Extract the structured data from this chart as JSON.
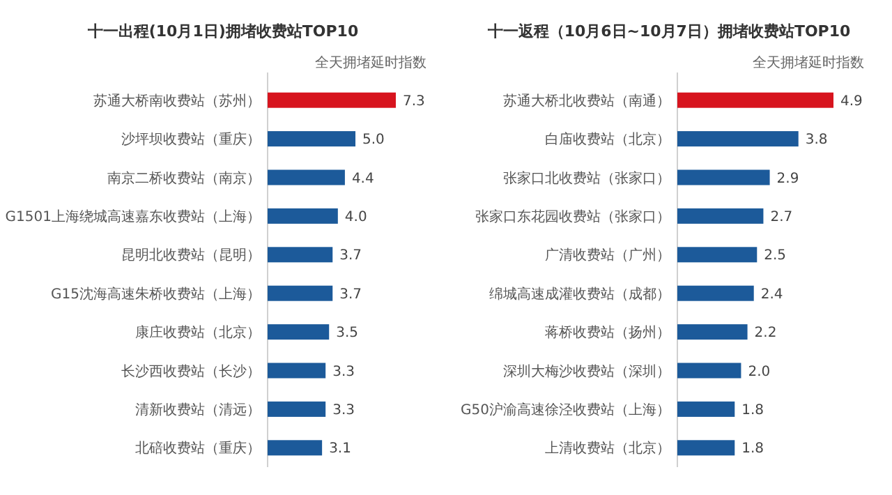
{
  "chart_data": [
    {
      "type": "bar",
      "orientation": "horizontal",
      "title": "十一出程(10月1日)拥堵收费站TOP10",
      "xlabel": "全天拥堵延时指数",
      "categories": [
        "苏通大桥南收费站（苏州）",
        "沙坪坝收费站（重庆）",
        "南京二桥收费站（南京）",
        "G1501上海绕城高速嘉东收费站（上海）",
        "昆明北收费站（昆明）",
        "G15沈海高速朱桥收费站（上海）",
        "康庄收费站（北京）",
        "长沙西收费站（长沙）",
        "清新收费站（清远）",
        "北碚收费站（重庆）"
      ],
      "values": [
        7.3,
        5.0,
        4.4,
        4.0,
        3.7,
        3.7,
        3.5,
        3.3,
        3.3,
        3.1
      ],
      "value_labels": [
        "7.3",
        "5.0",
        "4.4",
        "4.0",
        "3.7",
        "3.7",
        "3.5",
        "3.3",
        "3.3",
        "3.1"
      ],
      "colors": [
        "#d7141e",
        "#1c5a9a",
        "#1c5a9a",
        "#1c5a9a",
        "#1c5a9a",
        "#1c5a9a",
        "#1c5a9a",
        "#1c5a9a",
        "#1c5a9a",
        "#1c5a9a"
      ]
    },
    {
      "type": "bar",
      "orientation": "horizontal",
      "title": "十一返程（10月6日~10月7日）拥堵收费站TOP10",
      "xlabel": "全天拥堵延时指数",
      "categories": [
        "苏通大桥北收费站（南通）",
        "白庙收费站（北京）",
        "张家口北收费站（张家口）",
        "张家口东花园收费站（张家口）",
        "广清收费站（广州）",
        "绵城高速成灌收费站（成都）",
        "蒋桥收费站（扬州）",
        "深圳大梅沙收费站（深圳）",
        "G50沪渝高速徐泾收费站（上海）",
        "上清收费站（北京）"
      ],
      "values": [
        4.9,
        3.8,
        2.9,
        2.7,
        2.5,
        2.4,
        2.2,
        2.0,
        1.8,
        1.8
      ],
      "value_labels": [
        "4.9",
        "3.8",
        "2.9",
        "2.7",
        "2.5",
        "2.4",
        "2.2",
        "2.0",
        "1.8",
        "1.8"
      ],
      "colors": [
        "#d7141e",
        "#1c5a9a",
        "#1c5a9a",
        "#1c5a9a",
        "#1c5a9a",
        "#1c5a9a",
        "#1c5a9a",
        "#1c5a9a",
        "#1c5a9a",
        "#1c5a9a"
      ]
    }
  ]
}
